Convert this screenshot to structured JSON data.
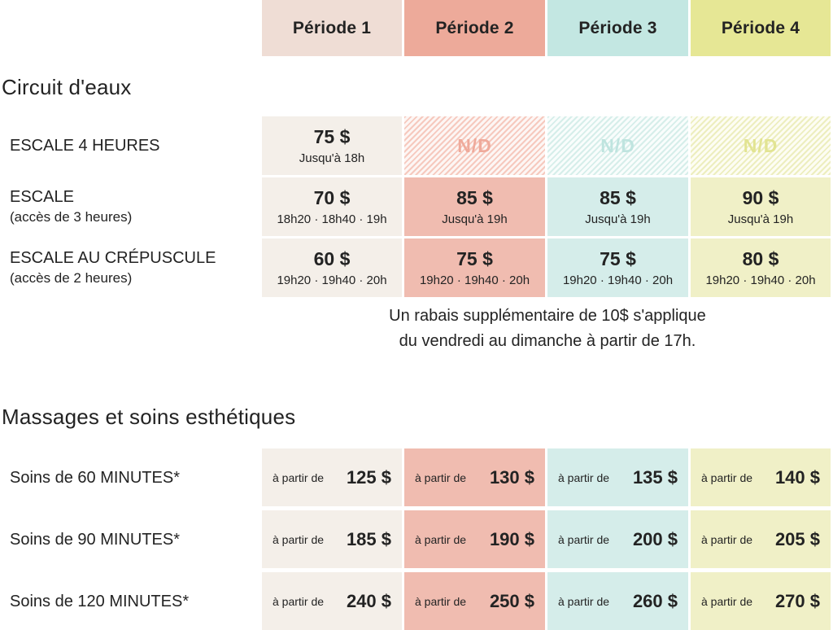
{
  "palette": {
    "text": "#232323",
    "p1_header": "#efddd5",
    "p2_header": "#edaa9a",
    "p3_header": "#c3e7e2",
    "p4_header": "#e6e795",
    "p1_cell": "#f4efe9",
    "p2_cell": "#f0bcb0",
    "p3_cell": "#d5edea",
    "p4_cell": "#f0f0c7",
    "p2_na_stripe": "#f6c9be",
    "p2_na_bg": "#fdf6f4",
    "p2_na_text": "#efaa9b",
    "p3_na_stripe": "#d6eeea",
    "p3_na_bg": "#f9fdfc",
    "p3_na_text": "#bfe4df",
    "p4_na_stripe": "#edeebf",
    "p4_na_bg": "#fdfdf3",
    "p4_na_text": "#e2e492"
  },
  "header": {
    "columns": [
      "Période 1",
      "Période 2",
      "Période 3",
      "Période 4"
    ]
  },
  "circuit": {
    "title": "Circuit d'eaux",
    "rows": [
      {
        "label": "ESCALE 4 HEURES",
        "sublabel": "",
        "cells": [
          {
            "price": "75 $",
            "time": "Jusqu'à 18h"
          },
          {
            "na": "N/D"
          },
          {
            "na": "N/D"
          },
          {
            "na": "N/D"
          }
        ]
      },
      {
        "label": "ESCALE",
        "sublabel": "(accès de 3 heures)",
        "cells": [
          {
            "price": "70 $",
            "time": "18h20 · 18h40 · 19h"
          },
          {
            "price": "85 $",
            "time": "Jusqu'à 19h"
          },
          {
            "price": "85 $",
            "time": "Jusqu'à 19h"
          },
          {
            "price": "90 $",
            "time": "Jusqu'à 19h"
          }
        ]
      },
      {
        "label": "ESCALE AU CRÉPUSCULE",
        "sublabel": "(accès de 2 heures)",
        "cells": [
          {
            "price": "60 $",
            "time": "19h20 · 19h40 · 20h"
          },
          {
            "price": "75 $",
            "time": "19h20 · 19h40 · 20h"
          },
          {
            "price": "75 $",
            "time": "19h20 · 19h40 · 20h"
          },
          {
            "price": "80 $",
            "time": "19h20 · 19h40 · 20h"
          }
        ]
      }
    ],
    "note_line1": "Un rabais supplémentaire de 10$ s'applique",
    "note_line2": "du vendredi au dimanche à partir de 17h."
  },
  "massages": {
    "title": "Massages et soins esthétiques",
    "prefix": "à partir de",
    "rows": [
      {
        "label": "Soins de 60 MINUTES*",
        "prices": [
          "125 $",
          "130 $",
          "135 $",
          "140 $"
        ]
      },
      {
        "label": "Soins de 90 MINUTES*",
        "prices": [
          "185 $",
          "190 $",
          "200 $",
          "205 $"
        ]
      },
      {
        "label": "Soins de 120 MINUTES*",
        "prices": [
          "240 $",
          "250 $",
          "260 $",
          "270 $"
        ]
      }
    ]
  }
}
